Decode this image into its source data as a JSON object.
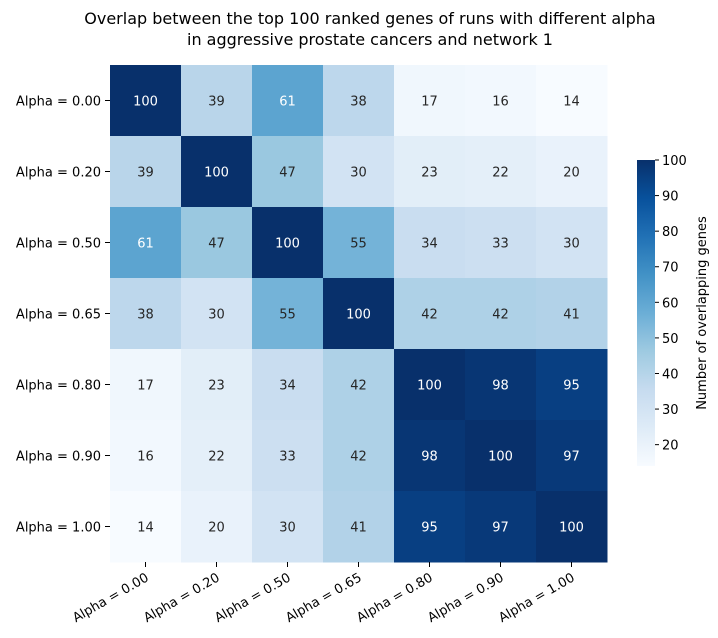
{
  "chart_data": {
    "type": "heatmap",
    "title_lines": [
      "Overlap between the top 100 ranked genes of runs with different alpha",
      "in aggressive prostate cancers and network 1"
    ],
    "x_categories": [
      "Alpha = 0.00",
      "Alpha = 0.20",
      "Alpha = 0.50",
      "Alpha = 0.65",
      "Alpha = 0.80",
      "Alpha = 0.90",
      "Alpha = 1.00"
    ],
    "y_categories": [
      "Alpha = 0.00",
      "Alpha = 0.20",
      "Alpha = 0.50",
      "Alpha = 0.65",
      "Alpha = 0.80",
      "Alpha = 0.90",
      "Alpha = 1.00"
    ],
    "values": [
      [
        100,
        39,
        61,
        38,
        17,
        16,
        14
      ],
      [
        39,
        100,
        47,
        30,
        23,
        22,
        20
      ],
      [
        61,
        47,
        100,
        55,
        34,
        33,
        30
      ],
      [
        38,
        30,
        55,
        100,
        42,
        42,
        41
      ],
      [
        17,
        23,
        34,
        42,
        100,
        98,
        95
      ],
      [
        16,
        22,
        33,
        42,
        98,
        100,
        97
      ],
      [
        14,
        20,
        30,
        41,
        95,
        97,
        100
      ]
    ],
    "colorbar": {
      "label": "Number of overlapping genes",
      "range": [
        14,
        100
      ],
      "ticks": [
        20,
        30,
        40,
        50,
        60,
        70,
        80,
        90,
        100
      ],
      "colormap": "Blues"
    },
    "annotations": true,
    "grid": false
  }
}
